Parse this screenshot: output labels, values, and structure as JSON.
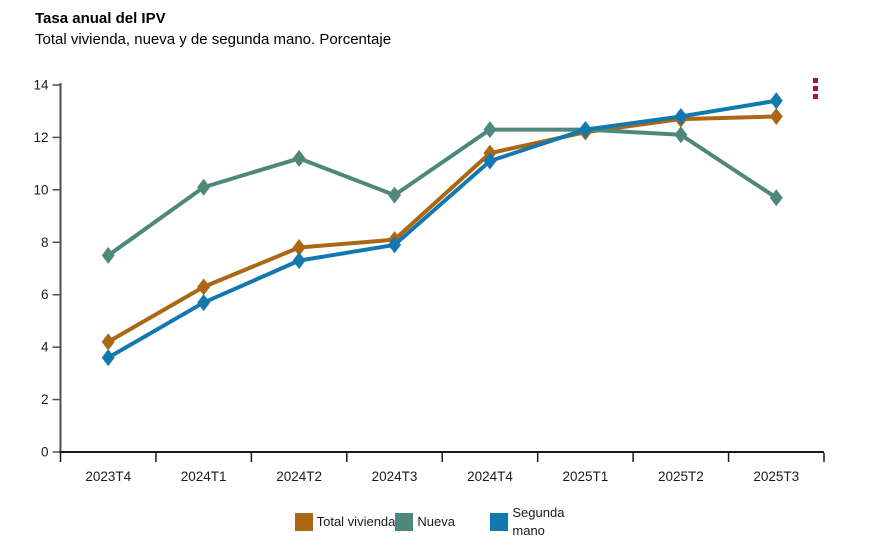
{
  "header": {
    "title": "Tasa anual del IPV",
    "subtitle": "Total vivienda, nueva y de segunda mano. Porcentaje"
  },
  "menu": {
    "icon": "kebab-menu-icon",
    "color": "#a1174a"
  },
  "chart_data": {
    "type": "line",
    "title": "Tasa anual del IPV",
    "subtitle": "Total vivienda, nueva y de segunda mano. Porcentaje",
    "categories": [
      "2023T4",
      "2024T1",
      "2024T2",
      "2024T3",
      "2024T4",
      "2025T1",
      "2025T2",
      "2025T3"
    ],
    "series": [
      {
        "name": "Total vivienda",
        "color": "#ab6712",
        "values": [
          4.2,
          6.3,
          7.8,
          8.1,
          11.4,
          12.2,
          12.7,
          12.8
        ]
      },
      {
        "name": "Nueva",
        "color": "#4e877b",
        "values": [
          7.5,
          10.1,
          11.2,
          9.8,
          12.3,
          12.3,
          12.1,
          9.7
        ]
      },
      {
        "name": "Segunda mano",
        "color": "#1478b0",
        "values": [
          3.6,
          5.7,
          7.3,
          7.9,
          11.1,
          12.3,
          12.8,
          13.4
        ]
      }
    ],
    "ylim": [
      0,
      14
    ],
    "yticks": [
      0,
      2,
      4,
      6,
      8,
      10,
      12,
      14
    ],
    "marker": "diamond",
    "grid": false,
    "legend_position": "bottom",
    "y_axis_color": "#4d4d4d",
    "x_axis_color": "#1a1a1a",
    "label_color": "#1a1a1a"
  }
}
